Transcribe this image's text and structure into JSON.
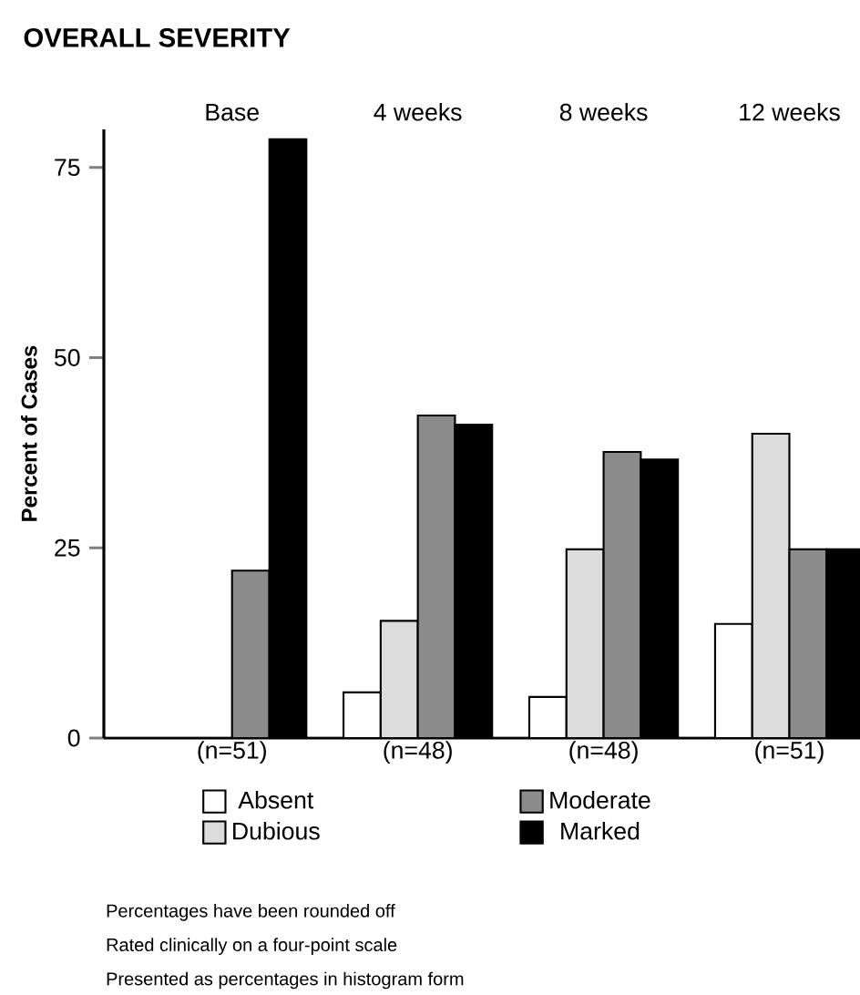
{
  "chart_data": {
    "type": "bar",
    "title": "OVERALL SEVERITY",
    "ylabel": "Percent of Cases",
    "categories": [
      "Base",
      "4 weeks",
      "8 weeks",
      "12 weeks"
    ],
    "series": [
      {
        "name": "Absent",
        "color": "#ffffff",
        "values": [
          0,
          6,
          5.4,
          15
        ]
      },
      {
        "name": "Dubious",
        "color": "#dcdcdc",
        "values": [
          0,
          15.4,
          24.8,
          40
        ]
      },
      {
        "name": "Moderate",
        "color": "#8c8c8c",
        "values": [
          22,
          42.4,
          37.6,
          24.8
        ]
      },
      {
        "name": "Marked",
        "color": "#000000",
        "values": [
          78.7,
          41.2,
          36.6,
          24.8
        ]
      }
    ],
    "ylim": [
      0,
      80
    ],
    "yticks": [
      0,
      25,
      50,
      75
    ],
    "grid": false,
    "legend": "bottom",
    "annotations": [
      {
        "text": "(n=51)",
        "x": "Base",
        "y": 0
      },
      {
        "text": "(n=48)",
        "x": "4 weeks",
        "y": 0
      },
      {
        "text": "(n=48)",
        "x": "8 weeks",
        "y": 0
      },
      {
        "text": "(n=51)",
        "x": "12 weeks",
        "y": 0
      },
      "Percentages have been rounded off",
      "Rated clinically on a four-point scale",
      "Presented as percentages in histogram form"
    ]
  }
}
